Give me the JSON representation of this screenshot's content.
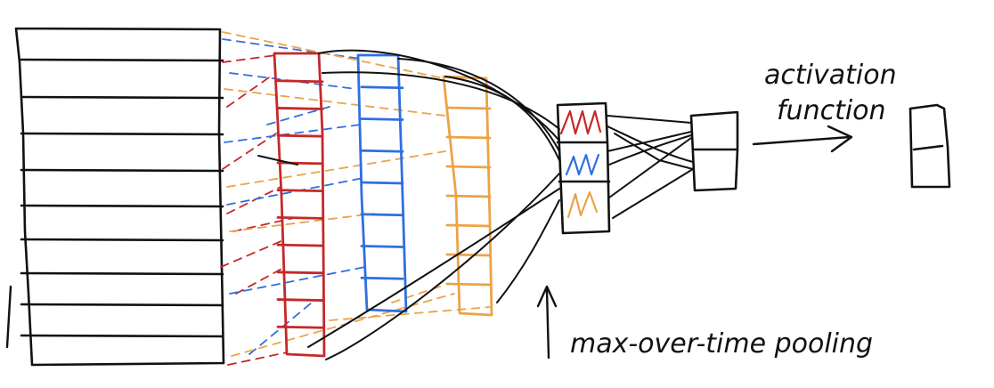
{
  "labels": {
    "activation_line1": "activation",
    "activation_line2": "function",
    "pooling": "max-over-time pooling"
  },
  "colors": {
    "ink": "#111111",
    "red": "#c62828",
    "blue": "#2f6fe0",
    "orange": "#eba347",
    "paper": "#ffffff"
  },
  "components": {
    "input_matrix_rows": 10,
    "feature_map_cells": 11,
    "pooled_vector_cells": 3,
    "dense_layer_cells": 2,
    "output_cells": 2
  }
}
